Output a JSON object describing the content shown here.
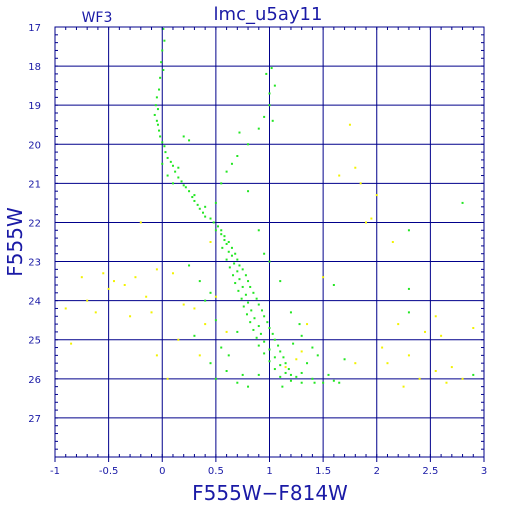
{
  "chart_data": {
    "type": "scatter",
    "title": "lmc_u5ay11",
    "corner_label": "WF3",
    "xlabel": "F555W−F814W",
    "ylabel": "F555W",
    "xlim": [
      -1,
      3
    ],
    "ylim": [
      28,
      17
    ],
    "y_inverted": true,
    "grid": true,
    "x_ticks": [
      {
        "value": -1,
        "label": "-1"
      },
      {
        "value": -0.5,
        "label": "-0.5"
      },
      {
        "value": 0,
        "label": "0"
      },
      {
        "value": 0.5,
        "label": "0.5"
      },
      {
        "value": 1,
        "label": "1"
      },
      {
        "value": 1.5,
        "label": "1.5"
      },
      {
        "value": 2,
        "label": "2"
      },
      {
        "value": 2.5,
        "label": "2.5"
      },
      {
        "value": 3,
        "label": "3"
      }
    ],
    "y_ticks": [
      {
        "value": 17,
        "label": "17"
      },
      {
        "value": 18,
        "label": "18"
      },
      {
        "value": 19,
        "label": "19"
      },
      {
        "value": 20,
        "label": "20"
      },
      {
        "value": 21,
        "label": "21"
      },
      {
        "value": 22,
        "label": "22"
      },
      {
        "value": 23,
        "label": "23"
      },
      {
        "value": 24,
        "label": "24"
      },
      {
        "value": 25,
        "label": "25"
      },
      {
        "value": 26,
        "label": "26"
      },
      {
        "value": 27,
        "label": "27"
      }
    ],
    "colors": {
      "axis": "#00008b",
      "grid": "#00008b",
      "text": "#1a1aa6",
      "series_main": "#22e622",
      "series_field": "#f2f200"
    },
    "series": [
      {
        "color": "#22e622",
        "points": [
          [
            0.01,
            17.05
          ],
          [
            0.02,
            17.35
          ],
          [
            0.0,
            17.6
          ],
          [
            -0.01,
            17.9
          ],
          [
            0.01,
            18.1
          ],
          [
            -0.02,
            18.3
          ],
          [
            -0.03,
            18.6
          ],
          [
            -0.05,
            18.8
          ],
          [
            -0.06,
            19.0
          ],
          [
            -0.04,
            19.1
          ],
          [
            -0.07,
            19.25
          ],
          [
            -0.05,
            19.4
          ],
          [
            -0.04,
            19.5
          ],
          [
            -0.03,
            19.65
          ],
          [
            -0.02,
            19.8
          ],
          [
            0.0,
            19.95
          ],
          [
            0.02,
            20.05
          ],
          [
            0.03,
            20.2
          ],
          [
            0.05,
            20.35
          ],
          [
            0.08,
            20.45
          ],
          [
            0.1,
            20.55
          ],
          [
            0.12,
            20.7
          ],
          [
            0.15,
            20.85
          ],
          [
            0.18,
            20.95
          ],
          [
            0.2,
            21.05
          ],
          [
            0.25,
            21.2
          ],
          [
            0.28,
            21.35
          ],
          [
            0.3,
            21.45
          ],
          [
            0.33,
            21.55
          ],
          [
            0.35,
            21.65
          ],
          [
            0.38,
            21.75
          ],
          [
            0.4,
            21.85
          ],
          [
            0.45,
            21.9
          ],
          [
            0.48,
            22.0
          ],
          [
            0.52,
            22.1
          ],
          [
            0.5,
            22.2
          ],
          [
            0.55,
            22.3
          ],
          [
            0.58,
            22.45
          ],
          [
            0.6,
            22.55
          ],
          [
            0.56,
            22.65
          ],
          [
            0.62,
            22.75
          ],
          [
            0.65,
            22.85
          ],
          [
            0.6,
            22.95
          ],
          [
            0.67,
            23.05
          ],
          [
            0.63,
            23.15
          ],
          [
            0.7,
            23.25
          ],
          [
            0.66,
            23.35
          ],
          [
            0.72,
            23.45
          ],
          [
            0.68,
            23.55
          ],
          [
            0.75,
            23.65
          ],
          [
            0.71,
            23.75
          ],
          [
            0.78,
            23.85
          ],
          [
            0.74,
            23.95
          ],
          [
            0.8,
            24.05
          ],
          [
            0.76,
            24.15
          ],
          [
            0.83,
            24.25
          ],
          [
            0.79,
            24.35
          ],
          [
            0.86,
            24.45
          ],
          [
            0.82,
            24.55
          ],
          [
            0.9,
            24.65
          ],
          [
            0.85,
            24.75
          ],
          [
            0.92,
            24.85
          ],
          [
            0.88,
            24.95
          ],
          [
            0.95,
            25.05
          ],
          [
            0.9,
            25.15
          ],
          [
            1.0,
            25.25
          ],
          [
            0.95,
            25.35
          ],
          [
            1.05,
            25.45
          ],
          [
            1.0,
            25.55
          ],
          [
            1.1,
            25.65
          ],
          [
            1.05,
            25.75
          ],
          [
            1.15,
            25.85
          ],
          [
            1.1,
            25.95
          ],
          [
            1.2,
            26.05
          ],
          [
            1.3,
            26.1
          ],
          [
            1.4,
            26.0
          ],
          [
            1.5,
            26.1
          ],
          [
            1.6,
            26.05
          ],
          [
            0.55,
            22.2
          ],
          [
            0.58,
            22.35
          ],
          [
            0.62,
            22.5
          ],
          [
            0.65,
            22.65
          ],
          [
            0.68,
            22.8
          ],
          [
            0.7,
            22.95
          ],
          [
            0.72,
            23.1
          ],
          [
            0.75,
            23.2
          ],
          [
            0.78,
            23.35
          ],
          [
            0.8,
            23.5
          ],
          [
            0.82,
            23.65
          ],
          [
            0.85,
            23.8
          ],
          [
            0.88,
            23.95
          ],
          [
            0.9,
            24.1
          ],
          [
            0.93,
            24.25
          ],
          [
            0.95,
            24.4
          ],
          [
            0.98,
            24.55
          ],
          [
            1.0,
            24.7
          ],
          [
            1.03,
            24.85
          ],
          [
            1.05,
            25.0
          ],
          [
            1.08,
            25.15
          ],
          [
            1.1,
            25.3
          ],
          [
            1.13,
            25.45
          ],
          [
            1.15,
            25.6
          ],
          [
            1.18,
            25.75
          ],
          [
            1.2,
            25.9
          ],
          [
            1.25,
            25.95
          ],
          [
            1.3,
            25.85
          ],
          [
            0.0,
            20.5
          ],
          [
            0.05,
            20.8
          ],
          [
            0.1,
            21.0
          ],
          [
            0.22,
            21.1
          ],
          [
            0.3,
            21.3
          ],
          [
            0.4,
            21.6
          ],
          [
            0.15,
            20.6
          ],
          [
            0.5,
            21.5
          ],
          [
            0.55,
            21.0
          ],
          [
            0.6,
            20.7
          ],
          [
            0.65,
            20.5
          ],
          [
            0.7,
            20.3
          ],
          [
            0.8,
            20.0
          ],
          [
            0.9,
            19.6
          ],
          [
            0.95,
            19.3
          ],
          [
            1.0,
            18.7
          ],
          [
            0.97,
            18.2
          ],
          [
            1.02,
            18.05
          ],
          [
            1.05,
            18.5
          ],
          [
            1.0,
            19.0
          ],
          [
            1.03,
            19.4
          ],
          [
            0.2,
            19.8
          ],
          [
            0.25,
            19.9
          ],
          [
            0.72,
            19.7
          ],
          [
            0.8,
            21.2
          ],
          [
            0.9,
            22.2
          ],
          [
            0.95,
            22.8
          ],
          [
            1.1,
            23.5
          ],
          [
            1.0,
            23.0
          ],
          [
            0.4,
            24.0
          ],
          [
            0.45,
            23.8
          ],
          [
            0.5,
            24.5
          ],
          [
            0.55,
            25.2
          ],
          [
            0.6,
            25.8
          ],
          [
            0.7,
            26.1
          ],
          [
            1.2,
            24.3
          ],
          [
            1.3,
            24.9
          ],
          [
            1.4,
            25.2
          ],
          [
            1.35,
            25.6
          ],
          [
            1.45,
            25.4
          ],
          [
            1.55,
            25.9
          ],
          [
            1.7,
            25.5
          ],
          [
            0.25,
            23.1
          ],
          [
            0.35,
            23.5
          ],
          [
            0.3,
            24.9
          ],
          [
            0.5,
            26.0
          ],
          [
            0.8,
            26.2
          ],
          [
            0.9,
            25.9
          ],
          [
            1.6,
            23.6
          ],
          [
            2.3,
            22.2
          ],
          [
            2.3,
            23.7
          ],
          [
            2.3,
            24.3
          ],
          [
            2.8,
            21.5
          ],
          [
            2.9,
            25.9
          ],
          [
            0.45,
            25.6
          ],
          [
            0.62,
            25.4
          ],
          [
            0.7,
            24.8
          ],
          [
            0.75,
            25.9
          ],
          [
            1.12,
            26.2
          ],
          [
            1.22,
            25.1
          ],
          [
            1.28,
            24.6
          ],
          [
            1.42,
            26.1
          ],
          [
            1.65,
            26.1
          ]
        ]
      },
      {
        "color": "#f2f200",
        "points": [
          [
            -0.9,
            24.2
          ],
          [
            -0.85,
            25.1
          ],
          [
            -0.75,
            23.4
          ],
          [
            -0.7,
            24.0
          ],
          [
            -0.62,
            24.3
          ],
          [
            -0.55,
            23.3
          ],
          [
            -0.5,
            23.7
          ],
          [
            -0.45,
            23.5
          ],
          [
            -0.35,
            23.6
          ],
          [
            -0.3,
            24.4
          ],
          [
            -0.25,
            23.4
          ],
          [
            -0.15,
            23.9
          ],
          [
            -0.1,
            24.3
          ],
          [
            -0.05,
            23.2
          ],
          [
            -0.05,
            25.4
          ],
          [
            0.1,
            23.3
          ],
          [
            0.2,
            24.1
          ],
          [
            0.3,
            24.2
          ],
          [
            0.35,
            25.4
          ],
          [
            0.4,
            24.6
          ],
          [
            0.45,
            22.5
          ],
          [
            0.6,
            24.8
          ],
          [
            1.25,
            25.5
          ],
          [
            1.35,
            24.6
          ],
          [
            1.5,
            23.4
          ],
          [
            1.65,
            20.8
          ],
          [
            1.75,
            19.5
          ],
          [
            1.8,
            20.6
          ],
          [
            1.85,
            21.0
          ],
          [
            1.9,
            22.0
          ],
          [
            1.95,
            21.9
          ],
          [
            2.0,
            21.3
          ],
          [
            2.05,
            25.2
          ],
          [
            2.1,
            25.6
          ],
          [
            2.2,
            24.6
          ],
          [
            2.3,
            25.4
          ],
          [
            2.4,
            26.0
          ],
          [
            2.45,
            24.8
          ],
          [
            2.55,
            25.8
          ],
          [
            2.6,
            24.9
          ],
          [
            2.65,
            26.1
          ],
          [
            2.7,
            25.7
          ],
          [
            2.8,
            26.0
          ],
          [
            2.9,
            24.7
          ],
          [
            1.3,
            25.3
          ],
          [
            1.15,
            25.7
          ],
          [
            1.8,
            25.6
          ],
          [
            2.15,
            22.5
          ],
          [
            2.25,
            26.2
          ],
          [
            -0.2,
            22.0
          ],
          [
            0.05,
            26.0
          ],
          [
            0.5,
            23.9
          ],
          [
            0.15,
            25.0
          ],
          [
            2.55,
            24.4
          ]
        ]
      }
    ]
  }
}
